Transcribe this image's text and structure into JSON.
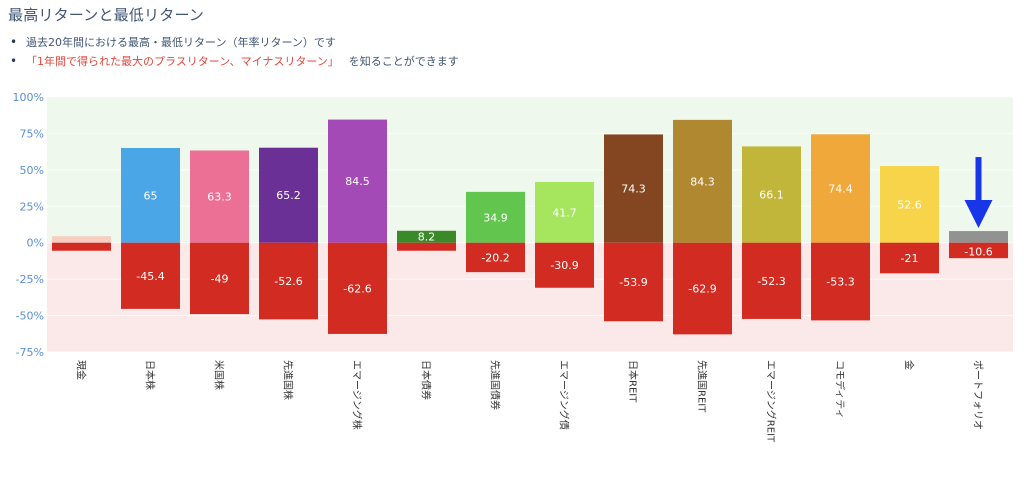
{
  "header": {
    "title": "最高リターンと最低リターン",
    "bullets": [
      {
        "text": "過去20年間における最高・最低リターン（年率リターン）です"
      },
      {
        "highlight": "「1年間で得られた最大のプラスリターン、マイナスリターン」",
        "text": "を知ることができます"
      }
    ]
  },
  "colors": {
    "negative": "#d22b22",
    "positive_zone": "#eef8ec",
    "negative_zone": "#fbe9e9",
    "axis_text": "#5a8fd6",
    "arrow": "#1836e8",
    "highlight_text": "#e0483c"
  },
  "chart_data": {
    "type": "bar",
    "title": "最高リターンと最低リターン",
    "xlabel": "",
    "ylabel": "",
    "ylim": [
      -75,
      100
    ],
    "yticks": [
      100,
      75,
      50,
      25,
      0,
      -25,
      -50,
      -75
    ],
    "ytick_labels": [
      "100%",
      "75%",
      "50%",
      "25%",
      "0%",
      "-25%",
      "-50%",
      "-75%"
    ],
    "grid": true,
    "legend": "none",
    "categories": [
      "現金",
      "日本株",
      "米国株",
      "先進国株",
      "エマージング株",
      "日本債券",
      "先進国債券",
      "エマージング債",
      "日本REIT",
      "先進国REIT",
      "エマージングREIT",
      "コモディティ",
      "金",
      "ポートフォリオ"
    ],
    "series": [
      {
        "name": "最高リターン",
        "values": [
          4.5,
          65,
          63.3,
          65.2,
          84.5,
          8.2,
          34.9,
          41.7,
          74.3,
          84.3,
          66.1,
          74.4,
          52.6,
          8
        ],
        "labels": [
          "",
          "65",
          "63.3",
          "65.2",
          "84.5",
          "8.2",
          "34.9",
          "41.7",
          "74.3",
          "84.3",
          "66.1",
          "74.4",
          "52.6",
          ""
        ],
        "colors": [
          "#f6cfc0",
          "#4aa6e6",
          "#ec6f96",
          "#6a3096",
          "#a44ab6",
          "#3a8a2a",
          "#62c64e",
          "#a6e65e",
          "#844620",
          "#b08830",
          "#c2b63a",
          "#f0a83a",
          "#f8d44a",
          "#929292"
        ]
      },
      {
        "name": "最低リターン",
        "values": [
          -5.5,
          -45.4,
          -49,
          -52.6,
          -62.6,
          -5.5,
          -20.2,
          -30.9,
          -53.9,
          -62.9,
          -52.3,
          -53.3,
          -21,
          -10.6
        ],
        "labels": [
          "",
          "-45.4",
          "-49",
          "-52.6",
          "-62.6",
          "",
          "-20.2",
          "-30.9",
          "-53.9",
          "-62.9",
          "-52.3",
          "-53.3",
          "-21",
          "-10.6"
        ],
        "color": "#d22b22"
      }
    ],
    "annotations": [
      {
        "type": "arrow",
        "direction": "down",
        "target_category": "ポートフォリオ",
        "color": "#1836e8"
      }
    ]
  }
}
